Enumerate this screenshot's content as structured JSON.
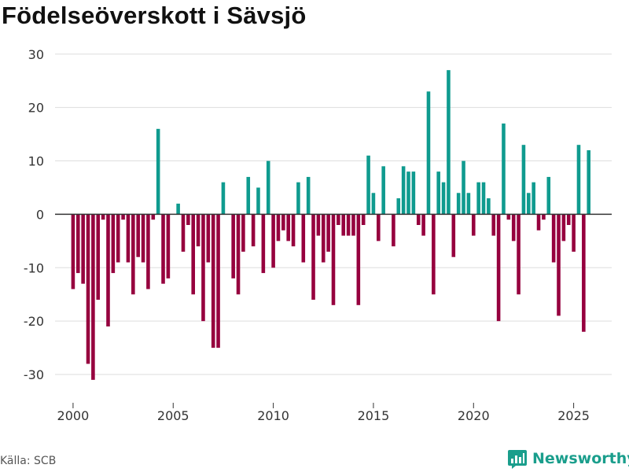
{
  "title": "Födelseöverskott i Sävsjö",
  "source": "Källa: SCB",
  "brand": "Newsworthy",
  "colors": {
    "positive": "#0f9b8f",
    "negative": "#96003e",
    "grid": "#dddddd",
    "zero": "#333333",
    "brand": "#1a9e8c"
  },
  "chart_data": {
    "type": "bar",
    "title": "Födelseöverskott i Sävsjö",
    "xlabel": "",
    "ylabel": "",
    "frequency": "quarterly",
    "start": 2000.0,
    "x_ticks": [
      2000,
      2005,
      2010,
      2015,
      2020,
      2025
    ],
    "y_ticks": [
      30,
      20,
      10,
      0,
      -10,
      -20,
      -30
    ],
    "ylim": [
      -35,
      31
    ],
    "xlim": [
      1999.1,
      2026.9
    ],
    "values": [
      -14,
      -11,
      -13,
      -28,
      -31,
      -16,
      -1,
      -21,
      -11,
      -9,
      -1,
      -9,
      -15,
      -8,
      -9,
      -14,
      -1,
      16,
      -13,
      -12,
      0,
      2,
      -7,
      -2,
      -15,
      -6,
      -20,
      -9,
      -25,
      -25,
      6,
      0,
      -12,
      -15,
      -7,
      7,
      -6,
      5,
      -11,
      10,
      -10,
      -5,
      -3,
      -5,
      -6,
      6,
      -9,
      7,
      -16,
      -4,
      -9,
      -7,
      -17,
      -2,
      -4,
      -4,
      -4,
      -17,
      -2,
      11,
      4,
      -5,
      9,
      0,
      -6,
      3,
      9,
      8,
      8,
      -2,
      -4,
      23,
      -15,
      8,
      6,
      27,
      -8,
      4,
      10,
      4,
      -4,
      6,
      6,
      3,
      -4,
      -20,
      17,
      -1,
      -5,
      -15,
      13,
      4,
      6,
      -3,
      -1,
      7,
      -9,
      -19,
      -5,
      -2,
      -7,
      13,
      -22,
      12
    ]
  }
}
